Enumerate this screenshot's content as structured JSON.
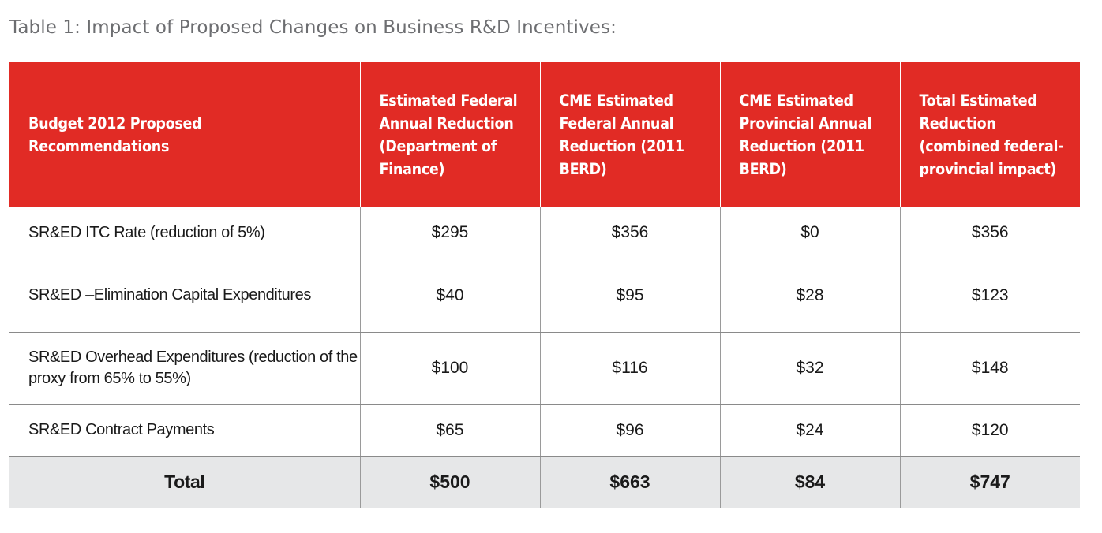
{
  "caption": "Table 1: Impact of Proposed Changes on Business R&D Incentives:",
  "header": {
    "col0": "Budget 2012 Proposed Recommendations",
    "col1": "Estimated Federal Annual Reduction (Department of Finance)",
    "col2": "CME Estimated Federal Annual Reduction (2011 BERD)",
    "col3": "CME Estimated Provincial Annual Reduction (2011 BERD)",
    "col4": "Total Estimated Reduction (combined federal-provincial impact)"
  },
  "rows": [
    {
      "label": "SR&ED ITC Rate (reduction of 5%)",
      "finance": "$295",
      "cme_federal": "$356",
      "cme_provincial": "$0",
      "total": "$356"
    },
    {
      "label": "SR&ED –Elimination Capital Expenditures",
      "finance": "$40",
      "cme_federal": "$95",
      "cme_provincial": "$28",
      "total": "$123"
    },
    {
      "label": "SR&ED Overhead Expenditures (reduction of the proxy from 65% to 55%)",
      "finance": "$100",
      "cme_federal": "$116",
      "cme_provincial": "$32",
      "total": "$148"
    },
    {
      "label": "SR&ED Contract Payments",
      "finance": "$65",
      "cme_federal": "$96",
      "cme_provincial": "$24",
      "total": "$120"
    }
  ],
  "total_row": {
    "label": "Total",
    "finance": "$500",
    "cme_federal": "$663",
    "cme_provincial": "$84",
    "total": "$747"
  },
  "colors": {
    "header_bg": "#e12b25",
    "total_bg": "#e6e7e8",
    "caption": "#6d6e71"
  }
}
